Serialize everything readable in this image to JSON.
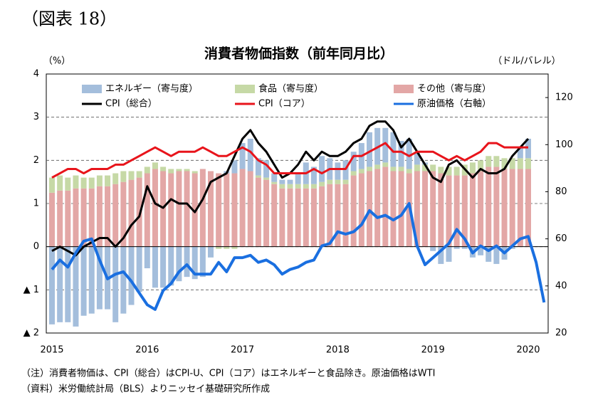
{
  "figure_label": "（図表 18）",
  "chart_data": {
    "type": "bar",
    "title": "消費者物価指数（前年同月比）",
    "y_label": "（%）",
    "y2_label": "（ドル/バレル）",
    "categories": [
      "2015",
      null,
      null,
      null,
      null,
      null,
      null,
      null,
      null,
      null,
      null,
      null,
      "2016",
      null,
      null,
      null,
      null,
      null,
      null,
      null,
      null,
      null,
      null,
      null,
      "2017",
      null,
      null,
      null,
      null,
      null,
      null,
      null,
      null,
      null,
      null,
      null,
      "2018",
      null,
      null,
      null,
      null,
      null,
      null,
      null,
      null,
      null,
      null,
      null,
      "2019",
      null,
      null,
      null,
      null,
      null,
      null,
      null,
      null,
      null,
      null,
      null,
      "2020",
      null,
      null
    ],
    "ylim": [
      -2,
      4
    ],
    "yticks": [
      {
        "value": -2,
        "label": "▲ 2"
      },
      {
        "value": -1,
        "label": "▲ 1"
      },
      0,
      1,
      2,
      3,
      4
    ],
    "y2lim": [
      20,
      130
    ],
    "y2ticks": [
      20,
      40,
      60,
      80,
      100,
      120
    ],
    "grid": true,
    "stacked": true,
    "series": [
      {
        "name": "その他（寄与度）",
        "type": "bar",
        "color": "#e3a7a6",
        "values": [
          1.25,
          1.3,
          1.3,
          1.35,
          1.35,
          1.35,
          1.4,
          1.4,
          1.45,
          1.5,
          1.55,
          1.6,
          1.7,
          1.8,
          1.75,
          1.7,
          1.75,
          1.75,
          1.7,
          1.8,
          1.75,
          1.7,
          1.7,
          1.7,
          1.8,
          1.75,
          1.6,
          1.55,
          1.45,
          1.35,
          1.35,
          1.35,
          1.35,
          1.35,
          1.4,
          1.45,
          1.45,
          1.45,
          1.65,
          1.7,
          1.75,
          1.8,
          1.85,
          1.75,
          1.75,
          1.7,
          1.75,
          1.75,
          1.75,
          1.7,
          1.65,
          1.65,
          1.65,
          1.7,
          1.75,
          1.85,
          1.85,
          1.8,
          1.8,
          1.8,
          1.8,
          null,
          null
        ]
      },
      {
        "name": "食品（寄与度）",
        "type": "bar",
        "color": "#c6d9a6",
        "values": [
          0.35,
          0.35,
          0.3,
          0.3,
          0.25,
          0.25,
          0.25,
          0.25,
          0.25,
          0.25,
          0.2,
          0.15,
          0.15,
          0.15,
          0.1,
          0.1,
          0.05,
          0.05,
          0.05,
          0.0,
          0.0,
          -0.05,
          -0.05,
          -0.05,
          0.0,
          0.0,
          0.05,
          0.05,
          0.05,
          0.1,
          0.1,
          0.1,
          0.1,
          0.1,
          0.1,
          0.1,
          0.1,
          0.1,
          0.1,
          0.1,
          0.1,
          0.1,
          0.1,
          0.1,
          0.1,
          0.1,
          0.15,
          0.15,
          0.15,
          0.15,
          0.2,
          0.2,
          0.25,
          0.25,
          0.25,
          0.25,
          0.25,
          0.25,
          0.25,
          0.25,
          0.25,
          null,
          null
        ]
      },
      {
        "name": "エネルギー（寄与度）",
        "type": "bar",
        "color": "#a4bedc",
        "values": [
          -1.8,
          -1.75,
          -1.75,
          -1.85,
          -1.6,
          -1.55,
          -1.45,
          -1.45,
          -1.75,
          -1.55,
          -1.35,
          -1.05,
          -0.5,
          -0.95,
          -0.95,
          -0.9,
          -0.8,
          -0.7,
          -0.75,
          -0.7,
          -0.25,
          0.0,
          0.05,
          0.3,
          0.6,
          0.75,
          0.4,
          0.4,
          0.2,
          0.1,
          0.1,
          0.25,
          0.5,
          0.4,
          0.6,
          0.5,
          0.4,
          0.45,
          0.45,
          0.6,
          0.8,
          0.85,
          0.8,
          0.8,
          0.6,
          0.7,
          0.3,
          0.05,
          -0.1,
          -0.4,
          -0.35,
          -0.05,
          -0.05,
          -0.25,
          -0.2,
          -0.35,
          -0.4,
          -0.3,
          -0.05,
          0.25,
          0.45,
          null,
          null
        ]
      },
      {
        "name": "CPI（総合）",
        "type": "line",
        "color": "#000000",
        "values": [
          -0.1,
          0.0,
          -0.1,
          -0.2,
          0.0,
          0.1,
          0.2,
          0.2,
          0.0,
          0.2,
          0.5,
          0.7,
          1.4,
          1.0,
          0.9,
          1.1,
          1.0,
          1.0,
          0.8,
          1.1,
          1.5,
          1.6,
          1.7,
          2.1,
          2.5,
          2.7,
          2.4,
          2.2,
          1.9,
          1.6,
          1.7,
          1.9,
          2.2,
          2.0,
          2.2,
          2.1,
          2.1,
          2.2,
          2.4,
          2.5,
          2.8,
          2.9,
          2.9,
          2.7,
          2.3,
          2.5,
          2.2,
          1.9,
          1.6,
          1.5,
          1.9,
          2.0,
          1.8,
          1.6,
          1.8,
          1.7,
          1.7,
          1.8,
          2.1,
          2.3,
          2.5,
          null,
          null
        ]
      },
      {
        "name": "CPI（コア）",
        "type": "line",
        "color": "#e8141b",
        "values": [
          1.6,
          1.7,
          1.8,
          1.8,
          1.7,
          1.8,
          1.8,
          1.8,
          1.9,
          1.9,
          2.0,
          2.1,
          2.2,
          2.3,
          2.2,
          2.1,
          2.2,
          2.2,
          2.2,
          2.3,
          2.2,
          2.1,
          2.1,
          2.2,
          2.3,
          2.2,
          2.0,
          1.9,
          1.7,
          1.7,
          1.7,
          1.7,
          1.7,
          1.8,
          1.7,
          1.8,
          1.8,
          1.8,
          2.1,
          2.1,
          2.2,
          2.3,
          2.4,
          2.2,
          2.2,
          2.1,
          2.2,
          2.2,
          2.2,
          2.1,
          2.0,
          2.1,
          2.0,
          2.1,
          2.2,
          2.4,
          2.4,
          2.3,
          2.3,
          2.3,
          2.3,
          null,
          null
        ]
      },
      {
        "name": "原油価格（右軸）",
        "type": "line",
        "axis": "y2",
        "color": "#1a6fe0",
        "values": [
          47,
          51,
          48,
          54,
          59,
          60,
          51,
          43,
          45,
          46,
          42,
          37,
          32,
          30,
          38,
          41,
          46,
          49,
          45,
          45,
          45,
          50,
          46,
          52,
          52,
          53,
          50,
          51,
          49,
          45,
          47,
          48,
          50,
          51,
          57,
          58,
          63,
          62,
          63,
          66,
          72,
          69,
          70,
          68,
          70,
          75,
          57,
          49,
          52,
          55,
          58,
          64,
          60,
          54,
          57,
          55,
          57,
          54,
          57,
          60,
          61,
          50,
          33
        ]
      }
    ],
    "notes": [
      "（注）消費者物価は、CPI（総合）はCPI-U、CPI（コア）はエネルギーと食品除き。原油価格はWTI",
      "（資料）米労働統計局（BLS）よりニッセイ基礎研究所作成"
    ]
  }
}
